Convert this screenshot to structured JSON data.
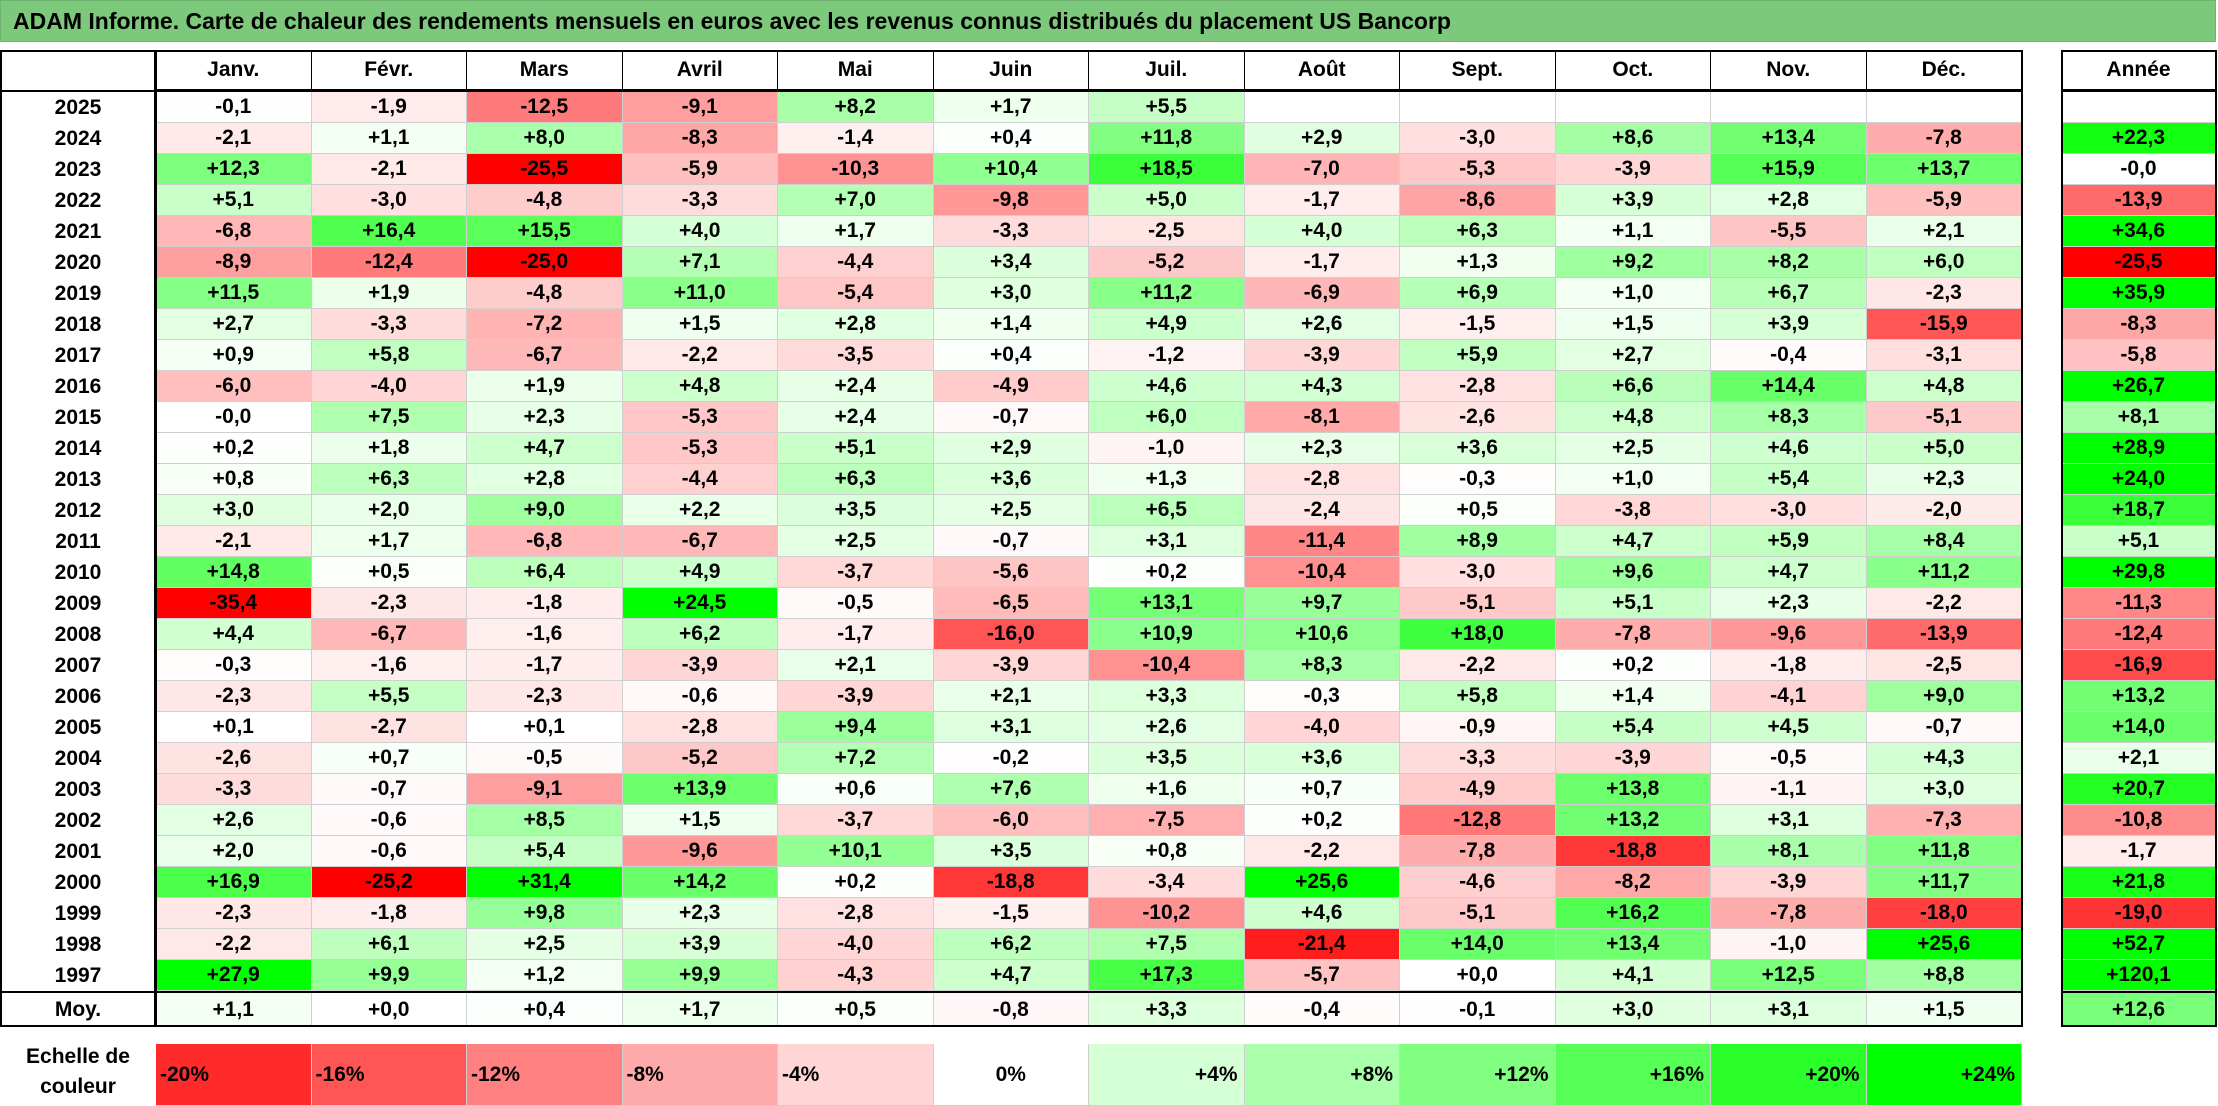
{
  "title": "ADAM Informe. Carte de chaleur des rendements mensuels en euros avec les revenus connus distribués du placement US Bancorp",
  "chart_data": {
    "type": "heatmap",
    "title": "ADAM Informe. Carte de chaleur des rendements mensuels en euros avec les revenus connus distribués du placement US Bancorp",
    "columns": [
      "Janv.",
      "Févr.",
      "Mars",
      "Avril",
      "Mai",
      "Juin",
      "Juil.",
      "Août",
      "Sept.",
      "Oct.",
      "Nov.",
      "Déc."
    ],
    "year_column": "Année",
    "rows": [
      {
        "year": "2025",
        "months": [
          "-0,1",
          "-1,9",
          "-12,5",
          "-9,1",
          "+8,2",
          "+1,7",
          "+5,5",
          "",
          "",
          "",
          "",
          ""
        ],
        "annual": ""
      },
      {
        "year": "2024",
        "months": [
          "-2,1",
          "+1,1",
          "+8,0",
          "-8,3",
          "-1,4",
          "+0,4",
          "+11,8",
          "+2,9",
          "-3,0",
          "+8,6",
          "+13,4",
          "-7,8"
        ],
        "annual": "+22,3"
      },
      {
        "year": "2023",
        "months": [
          "+12,3",
          "-2,1",
          "-25,5",
          "-5,9",
          "-10,3",
          "+10,4",
          "+18,5",
          "-7,0",
          "-5,3",
          "-3,9",
          "+15,9",
          "+13,7"
        ],
        "annual": "-0,0"
      },
      {
        "year": "2022",
        "months": [
          "+5,1",
          "-3,0",
          "-4,8",
          "-3,3",
          "+7,0",
          "-9,8",
          "+5,0",
          "-1,7",
          "-8,6",
          "+3,9",
          "+2,8",
          "-5,9"
        ],
        "annual": "-13,9"
      },
      {
        "year": "2021",
        "months": [
          "-6,8",
          "+16,4",
          "+15,5",
          "+4,0",
          "+1,7",
          "-3,3",
          "-2,5",
          "+4,0",
          "+6,3",
          "+1,1",
          "-5,5",
          "+2,1"
        ],
        "annual": "+34,6"
      },
      {
        "year": "2020",
        "months": [
          "-8,9",
          "-12,4",
          "-25,0",
          "+7,1",
          "-4,4",
          "+3,4",
          "-5,2",
          "-1,7",
          "+1,3",
          "+9,2",
          "+8,2",
          "+6,0"
        ],
        "annual": "-25,5"
      },
      {
        "year": "2019",
        "months": [
          "+11,5",
          "+1,9",
          "-4,8",
          "+11,0",
          "-5,4",
          "+3,0",
          "+11,2",
          "-6,9",
          "+6,9",
          "+1,0",
          "+6,7",
          "-2,3"
        ],
        "annual": "+35,9"
      },
      {
        "year": "2018",
        "months": [
          "+2,7",
          "-3,3",
          "-7,2",
          "+1,5",
          "+2,8",
          "+1,4",
          "+4,9",
          "+2,6",
          "-1,5",
          "+1,5",
          "+3,9",
          "-15,9"
        ],
        "annual": "-8,3"
      },
      {
        "year": "2017",
        "months": [
          "+0,9",
          "+5,8",
          "-6,7",
          "-2,2",
          "-3,5",
          "+0,4",
          "-1,2",
          "-3,9",
          "+5,9",
          "+2,7",
          "-0,4",
          "-3,1"
        ],
        "annual": "-5,8"
      },
      {
        "year": "2016",
        "months": [
          "-6,0",
          "-4,0",
          "+1,9",
          "+4,8",
          "+2,4",
          "-4,9",
          "+4,6",
          "+4,3",
          "-2,8",
          "+6,6",
          "+14,4",
          "+4,8"
        ],
        "annual": "+26,7"
      },
      {
        "year": "2015",
        "months": [
          "-0,0",
          "+7,5",
          "+2,3",
          "-5,3",
          "+2,4",
          "-0,7",
          "+6,0",
          "-8,1",
          "-2,6",
          "+4,8",
          "+8,3",
          "-5,1"
        ],
        "annual": "+8,1"
      },
      {
        "year": "2014",
        "months": [
          "+0,2",
          "+1,8",
          "+4,7",
          "-5,3",
          "+5,1",
          "+2,9",
          "-1,0",
          "+2,3",
          "+3,6",
          "+2,5",
          "+4,6",
          "+5,0"
        ],
        "annual": "+28,9"
      },
      {
        "year": "2013",
        "months": [
          "+0,8",
          "+6,3",
          "+2,8",
          "-4,4",
          "+6,3",
          "+3,6",
          "+1,3",
          "-2,8",
          "-0,3",
          "+1,0",
          "+5,4",
          "+2,3"
        ],
        "annual": "+24,0"
      },
      {
        "year": "2012",
        "months": [
          "+3,0",
          "+2,0",
          "+9,0",
          "+2,2",
          "+3,5",
          "+2,5",
          "+6,5",
          "-2,4",
          "+0,5",
          "-3,8",
          "-3,0",
          "-2,0"
        ],
        "annual": "+18,7"
      },
      {
        "year": "2011",
        "months": [
          "-2,1",
          "+1,7",
          "-6,8",
          "-6,7",
          "+2,5",
          "-0,7",
          "+3,1",
          "-11,4",
          "+8,9",
          "+4,7",
          "+5,9",
          "+8,4"
        ],
        "annual": "+5,1"
      },
      {
        "year": "2010",
        "months": [
          "+14,8",
          "+0,5",
          "+6,4",
          "+4,9",
          "-3,7",
          "-5,6",
          "+0,2",
          "-10,4",
          "-3,0",
          "+9,6",
          "+4,7",
          "+11,2"
        ],
        "annual": "+29,8"
      },
      {
        "year": "2009",
        "months": [
          "-35,4",
          "-2,3",
          "-1,8",
          "+24,5",
          "-0,5",
          "-6,5",
          "+13,1",
          "+9,7",
          "-5,1",
          "+5,1",
          "+2,3",
          "-2,2"
        ],
        "annual": "-11,3"
      },
      {
        "year": "2008",
        "months": [
          "+4,4",
          "-6,7",
          "-1,6",
          "+6,2",
          "-1,7",
          "-16,0",
          "+10,9",
          "+10,6",
          "+18,0",
          "-7,8",
          "-9,6",
          "-13,9"
        ],
        "annual": "-12,4"
      },
      {
        "year": "2007",
        "months": [
          "-0,3",
          "-1,6",
          "-1,7",
          "-3,9",
          "+2,1",
          "-3,9",
          "-10,4",
          "+8,3",
          "-2,2",
          "+0,2",
          "-1,8",
          "-2,5"
        ],
        "annual": "-16,9"
      },
      {
        "year": "2006",
        "months": [
          "-2,3",
          "+5,5",
          "-2,3",
          "-0,6",
          "-3,9",
          "+2,1",
          "+3,3",
          "-0,3",
          "+5,8",
          "+1,4",
          "-4,1",
          "+9,0"
        ],
        "annual": "+13,2"
      },
      {
        "year": "2005",
        "months": [
          "+0,1",
          "-2,7",
          "+0,1",
          "-2,8",
          "+9,4",
          "+3,1",
          "+2,6",
          "-4,0",
          "-0,9",
          "+5,4",
          "+4,5",
          "-0,7"
        ],
        "annual": "+14,0"
      },
      {
        "year": "2004",
        "months": [
          "-2,6",
          "+0,7",
          "-0,5",
          "-5,2",
          "+7,2",
          "-0,2",
          "+3,5",
          "+3,6",
          "-3,3",
          "-3,9",
          "-0,5",
          "+4,3"
        ],
        "annual": "+2,1"
      },
      {
        "year": "2003",
        "months": [
          "-3,3",
          "-0,7",
          "-9,1",
          "+13,9",
          "+0,6",
          "+7,6",
          "+1,6",
          "+0,7",
          "-4,9",
          "+13,8",
          "-1,1",
          "+3,0"
        ],
        "annual": "+20,7"
      },
      {
        "year": "2002",
        "months": [
          "+2,6",
          "-0,6",
          "+8,5",
          "+1,5",
          "-3,7",
          "-6,0",
          "-7,5",
          "+0,2",
          "-12,8",
          "+13,2",
          "+3,1",
          "-7,3"
        ],
        "annual": "-10,8"
      },
      {
        "year": "2001",
        "months": [
          "+2,0",
          "-0,6",
          "+5,4",
          "-9,6",
          "+10,1",
          "+3,5",
          "+0,8",
          "-2,2",
          "-7,8",
          "-18,8",
          "+8,1",
          "+11,8"
        ],
        "annual": "-1,7"
      },
      {
        "year": "2000",
        "months": [
          "+16,9",
          "-25,2",
          "+31,4",
          "+14,2",
          "+0,2",
          "-18,8",
          "-3,4",
          "+25,6",
          "-4,6",
          "-8,2",
          "-3,9",
          "+11,7"
        ],
        "annual": "+21,8"
      },
      {
        "year": "1999",
        "months": [
          "-2,3",
          "-1,8",
          "+9,8",
          "+2,3",
          "-2,8",
          "-1,5",
          "-10,2",
          "+4,6",
          "-5,1",
          "+16,2",
          "-7,8",
          "-18,0"
        ],
        "annual": "-19,0"
      },
      {
        "year": "1998",
        "months": [
          "-2,2",
          "+6,1",
          "+2,5",
          "+3,9",
          "-4,0",
          "+6,2",
          "+7,5",
          "-21,4",
          "+14,0",
          "+13,4",
          "-1,0",
          "+25,6"
        ],
        "annual": "+52,7"
      },
      {
        "year": "1997",
        "months": [
          "+27,9",
          "+9,9",
          "+1,2",
          "+9,9",
          "-4,3",
          "+4,7",
          "+17,3",
          "-5,7",
          "+0,0",
          "+4,1",
          "+12,5",
          "+8,8"
        ],
        "annual": "+120,1"
      }
    ],
    "average": {
      "label": "Moy.",
      "months": [
        "+1,1",
        "+0,0",
        "+0,4",
        "+1,7",
        "+0,5",
        "-0,8",
        "+3,3",
        "-0,4",
        "-0,1",
        "+3,0",
        "+3,1",
        "+1,5"
      ],
      "annual": "+12,6"
    },
    "scale": {
      "label_line1": "Echelle de",
      "label_line2": "couleur",
      "steps": [
        {
          "label": "-20%",
          "value": -20
        },
        {
          "label": "-16%",
          "value": -16
        },
        {
          "label": "-12%",
          "value": -12
        },
        {
          "label": "-8%",
          "value": -8
        },
        {
          "label": "-4%",
          "value": -4
        },
        {
          "label": "0%",
          "value": 0
        },
        {
          "label": "+4%",
          "value": 4
        },
        {
          "label": "+8%",
          "value": 8
        },
        {
          "label": "+12%",
          "value": 12
        },
        {
          "label": "+16%",
          "value": 16
        },
        {
          "label": "+20%",
          "value": 20
        },
        {
          "label": "+24%",
          "value": 24
        }
      ]
    },
    "colors": {
      "negative": "#ff0000",
      "neutral": "#ffffff",
      "positive": "#00ff00",
      "title_bar": "#7dc97c"
    }
  }
}
